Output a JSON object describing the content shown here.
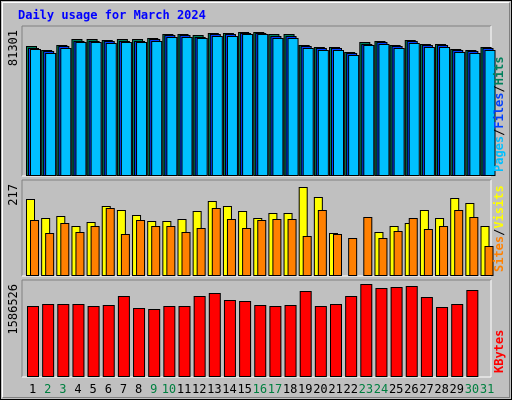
{
  "title": "Daily usage for March 2024",
  "colors": {
    "hits": "#00805c",
    "files": "#0040ff",
    "pages": "#00c0ff",
    "visits": "#ffff00",
    "sites": "#ff8000",
    "kbytes": "#ff0000",
    "weekend_day": "#008040",
    "weekday": "#000000",
    "title": "#0000ff"
  },
  "chart_data": [
    {
      "type": "bar",
      "panel": "hits-files-pages",
      "categories": [
        "1",
        "2",
        "3",
        "4",
        "5",
        "6",
        "7",
        "8",
        "9",
        "10",
        "11",
        "12",
        "13",
        "14",
        "15",
        "16",
        "17",
        "18",
        "19",
        "20",
        "21",
        "22",
        "23",
        "24",
        "25",
        "26",
        "27",
        "28",
        "29",
        "30",
        "31"
      ],
      "weekend_days": [
        "2",
        "3",
        "9",
        "10",
        "16",
        "17",
        "23",
        "24",
        "30",
        "31"
      ],
      "max_label": "81301",
      "ymax": 81301,
      "legend": [
        {
          "text": "Hits",
          "color_key": "hits"
        },
        {
          "text": "Files",
          "color_key": "files"
        },
        {
          "text": "Pages",
          "color_key": "pages"
        }
      ],
      "series": [
        {
          "name": "Hits",
          "values": [
            72300,
            70400,
            73200,
            76200,
            76200,
            75800,
            76200,
            76200,
            77100,
            79300,
            79300,
            78400,
            79800,
            79800,
            80400,
            80400,
            78900,
            78900,
            73200,
            71900,
            71900,
            69300,
            74500,
            75400,
            73200,
            75800,
            73700,
            73700,
            70800,
            70400,
            71900
          ]
        },
        {
          "name": "Files",
          "values": [
            71500,
            69500,
            72400,
            75400,
            75400,
            74900,
            75400,
            75400,
            76200,
            78400,
            78400,
            77500,
            78900,
            78900,
            79800,
            79800,
            78000,
            78000,
            72400,
            71100,
            71100,
            68500,
            73700,
            74500,
            72400,
            74900,
            72900,
            72900,
            70000,
            69500,
            71100
          ]
        },
        {
          "name": "Pages",
          "values": [
            70500,
            68600,
            71500,
            74500,
            74500,
            74000,
            74500,
            74500,
            75400,
            77500,
            77500,
            76700,
            78000,
            78000,
            78900,
            78900,
            77100,
            77100,
            71500,
            70200,
            70200,
            67600,
            72900,
            73700,
            71500,
            74000,
            72000,
            72000,
            69100,
            68600,
            70200
          ]
        }
      ]
    },
    {
      "type": "bar",
      "panel": "visits-sites",
      "categories": [
        "1",
        "2",
        "3",
        "4",
        "5",
        "6",
        "7",
        "8",
        "9",
        "10",
        "11",
        "12",
        "13",
        "14",
        "15",
        "16",
        "17",
        "18",
        "19",
        "20",
        "21",
        "22",
        "23",
        "24",
        "25",
        "26",
        "27",
        "28",
        "29",
        "30",
        "31"
      ],
      "max_label": "217",
      "ymax": 217,
      "legend": [
        {
          "text": "Visits",
          "color_key": "visits"
        },
        {
          "text": "Sites",
          "color_key": "sites"
        }
      ],
      "series": [
        {
          "name": "Visits",
          "values": [
            182,
            137,
            142,
            119,
            127,
            166,
            156,
            145,
            130,
            130,
            135,
            153,
            176,
            166,
            153,
            137,
            148,
            148,
            209,
            187,
            102,
            0,
            0,
            104,
            119,
            125,
            156,
            137,
            184,
            173,
            119
          ]
        },
        {
          "name": "Sites",
          "values": [
            132,
            101,
            125,
            104,
            117,
            161,
            98,
            132,
            117,
            117,
            104,
            114,
            161,
            135,
            114,
            132,
            135,
            135,
            94,
            156,
            99,
            89,
            140,
            89,
            107,
            137,
            111,
            119,
            156,
            140,
            70
          ]
        }
      ]
    },
    {
      "type": "bar",
      "panel": "kbytes",
      "categories": [
        "1",
        "2",
        "3",
        "4",
        "5",
        "6",
        "7",
        "8",
        "9",
        "10",
        "11",
        "12",
        "13",
        "14",
        "15",
        "16",
        "17",
        "18",
        "19",
        "20",
        "21",
        "22",
        "23",
        "24",
        "25",
        "26",
        "27",
        "28",
        "29",
        "30",
        "31"
      ],
      "max_label": "1586526",
      "ymax": 1586526,
      "legend": [
        {
          "text": "KBytes",
          "color_key": "kbytes"
        }
      ],
      "series": [
        {
          "name": "KBytes",
          "values": [
            1215000,
            1250000,
            1250000,
            1250000,
            1215000,
            1235000,
            1380000,
            1180000,
            1165000,
            1215000,
            1215000,
            1380000,
            1440000,
            1320000,
            1305000,
            1235000,
            1215000,
            1235000,
            1465000,
            1215000,
            1250000,
            1380000,
            1586526,
            1525000,
            1540000,
            1555000,
            1370000,
            1200000,
            1250000,
            1480000,
            0
          ]
        }
      ]
    }
  ]
}
